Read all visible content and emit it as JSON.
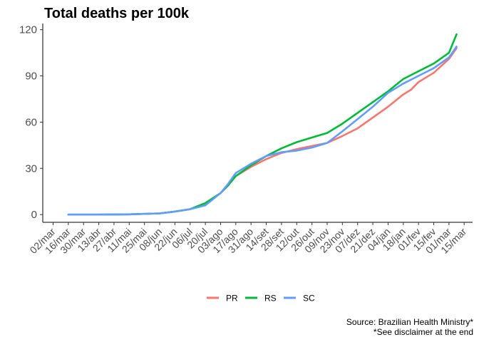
{
  "chart_data": {
    "type": "line",
    "title": "Total deaths per 100k",
    "xlabel": "",
    "ylabel": "",
    "ylim": [
      -5,
      124
    ],
    "yticks": [
      0,
      30,
      60,
      90,
      120
    ],
    "x_tick_labels": [
      "02/mar",
      "16/mar",
      "30/mar",
      "13/abr",
      "27/abr",
      "11/mai",
      "25/mai",
      "08/jun",
      "22/jun",
      "06/jul",
      "20/jul",
      "03/ago",
      "17/ago",
      "31/ago",
      "14/set",
      "28/set",
      "12/out",
      "26/out",
      "09/nov",
      "23/nov",
      "07/dez",
      "21/dez",
      "04/jan",
      "18/jan",
      "01/fev",
      "15/fev",
      "01/mar",
      "15/mar"
    ],
    "x_tick_index_range": [
      0,
      27
    ],
    "grid": false,
    "legend": "bottom",
    "series": [
      {
        "name": "PR",
        "color": "#F8766D",
        "points": [
          [
            1.0,
            0
          ],
          [
            3.0,
            0
          ],
          [
            5.0,
            0.2
          ],
          [
            7.0,
            0.8
          ],
          [
            8.0,
            2
          ],
          [
            9.0,
            3.5
          ],
          [
            10.0,
            7
          ],
          [
            11.0,
            14
          ],
          [
            11.5,
            19
          ],
          [
            12.0,
            25
          ],
          [
            13.0,
            31
          ],
          [
            14.0,
            36
          ],
          [
            15.0,
            40
          ],
          [
            16.0,
            42.5
          ],
          [
            17.0,
            44.5
          ],
          [
            18.0,
            46.5
          ],
          [
            19.0,
            51
          ],
          [
            20.0,
            56
          ],
          [
            21.0,
            63
          ],
          [
            22.0,
            70
          ],
          [
            22.5,
            74
          ],
          [
            23.0,
            78
          ],
          [
            23.5,
            81
          ],
          [
            24.0,
            86
          ],
          [
            25.0,
            92
          ],
          [
            26.0,
            101
          ],
          [
            26.5,
            108
          ]
        ]
      },
      {
        "name": "RS",
        "color": "#00BA38",
        "points": [
          [
            1.0,
            0
          ],
          [
            3.0,
            0
          ],
          [
            5.0,
            0.2
          ],
          [
            7.0,
            0.8
          ],
          [
            8.0,
            2
          ],
          [
            9.0,
            3.5
          ],
          [
            10.0,
            7.5
          ],
          [
            11.0,
            14
          ],
          [
            11.5,
            19
          ],
          [
            12.0,
            25
          ],
          [
            13.0,
            32
          ],
          [
            14.0,
            38
          ],
          [
            15.0,
            43
          ],
          [
            16.0,
            47
          ],
          [
            17.0,
            50
          ],
          [
            18.0,
            53
          ],
          [
            19.0,
            59
          ],
          [
            20.0,
            66
          ],
          [
            21.0,
            73
          ],
          [
            22.0,
            80
          ],
          [
            22.5,
            84
          ],
          [
            23.0,
            88
          ],
          [
            24.0,
            93
          ],
          [
            25.0,
            98
          ],
          [
            26.0,
            105
          ],
          [
            26.5,
            117
          ]
        ]
      },
      {
        "name": "SC",
        "color": "#619CFF",
        "points": [
          [
            1.0,
            0
          ],
          [
            3.0,
            0
          ],
          [
            5.0,
            0.2
          ],
          [
            7.0,
            0.8
          ],
          [
            8.0,
            2
          ],
          [
            9.0,
            3.5
          ],
          [
            10.0,
            6
          ],
          [
            11.0,
            14
          ],
          [
            11.5,
            20
          ],
          [
            12.0,
            27
          ],
          [
            13.0,
            33
          ],
          [
            14.0,
            38
          ],
          [
            15.0,
            40.5
          ],
          [
            16.0,
            41.5
          ],
          [
            17.0,
            43.5
          ],
          [
            18.0,
            46.5
          ],
          [
            19.0,
            54
          ],
          [
            20.0,
            62
          ],
          [
            21.0,
            70
          ],
          [
            22.0,
            79
          ],
          [
            23.0,
            85
          ],
          [
            24.0,
            90
          ],
          [
            25.0,
            95
          ],
          [
            26.0,
            102
          ],
          [
            26.5,
            109
          ]
        ]
      }
    ],
    "caption": [
      "Source: Brazilian Health Ministry*",
      "*See disclaimer at the end"
    ]
  }
}
